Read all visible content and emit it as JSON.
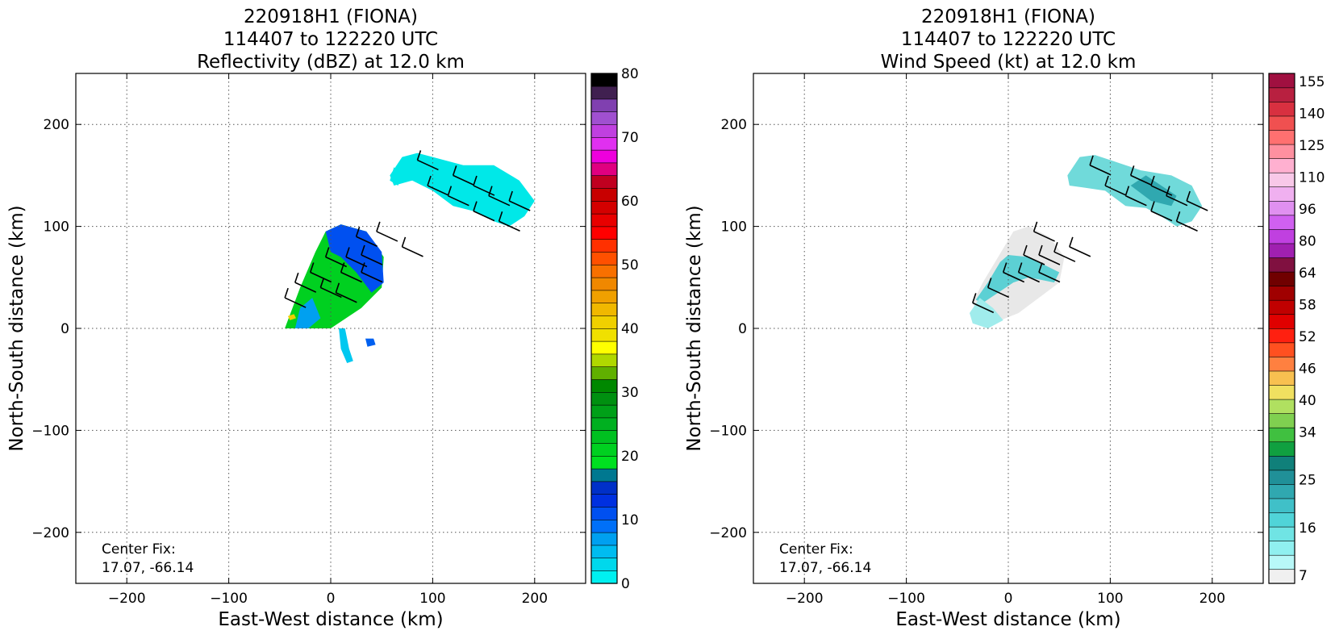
{
  "chart_data": [
    {
      "type": "heatmap",
      "title_lines": [
        "220918H1 (FIONA)",
        "114407 to 122220 UTC",
        "Reflectivity (dBZ) at 12.0 km"
      ],
      "xlabel": "East-West distance (km)",
      "ylabel": "North-South distance (km)",
      "xlim": [
        -250,
        250
      ],
      "ylim": [
        -250,
        250
      ],
      "xticks": [
        -200,
        -100,
        0,
        100,
        200
      ],
      "yticks": [
        -200,
        -100,
        0,
        100,
        200
      ],
      "tick_labels": {
        "-200": "−200",
        "-100": "−100",
        "0": "0",
        "100": "100",
        "200": "200"
      },
      "grid": true,
      "annotation": [
        "Center Fix:",
        "17.07, -66.14"
      ],
      "colorbar": {
        "min": 0,
        "max": 80,
        "step": 2.5,
        "ticks": [
          0,
          10,
          20,
          30,
          40,
          50,
          60,
          70,
          80
        ],
        "tick_labels": [
          "0",
          "10",
          "20",
          "30",
          "40",
          "50",
          "60",
          "70",
          "80"
        ],
        "colors": [
          "#00f0f0",
          "#00d8ec",
          "#00bcf0",
          "#00a0f0",
          "#0070f8",
          "#0050f0",
          "#0030e0",
          "#0030c8",
          "#007890",
          "#00e020",
          "#00d020",
          "#00c020",
          "#00b020",
          "#00a018",
          "#009010",
          "#008800",
          "#60b000",
          "#b0d800",
          "#ffff00",
          "#f0e000",
          "#f0d000",
          "#f0b800",
          "#f0a000",
          "#f08800",
          "#f87000",
          "#ff5000",
          "#ff3000",
          "#ff0000",
          "#e80000",
          "#d40000",
          "#c80000",
          "#c00020",
          "#e00080",
          "#ee00dd",
          "#e030f0",
          "#c040e0",
          "#a050d0",
          "#8040b0",
          "#402050",
          "#000000"
        ]
      },
      "regions": [
        {
          "name": "core",
          "color": "#00d020",
          "points": [
            [
              -45,
              0
            ],
            [
              -30,
              40
            ],
            [
              -15,
              75
            ],
            [
              -5,
              95
            ],
            [
              10,
              102
            ],
            [
              35,
              95
            ],
            [
              52,
              70
            ],
            [
              50,
              40
            ],
            [
              30,
              20
            ],
            [
              0,
              0
            ]
          ]
        },
        {
          "name": "core-blue",
          "color": "#0050f0",
          "points": [
            [
              -5,
              95
            ],
            [
              10,
              102
            ],
            [
              35,
              95
            ],
            [
              50,
              75
            ],
            [
              52,
              45
            ],
            [
              40,
              35
            ],
            [
              25,
              55
            ],
            [
              10,
              70
            ],
            [
              0,
              75
            ]
          ]
        },
        {
          "name": "core-lightblue",
          "color": "#00a0f0",
          "points": [
            [
              -30,
              20
            ],
            [
              -18,
              30
            ],
            [
              -10,
              10
            ],
            [
              -22,
              0
            ],
            [
              -35,
              0
            ]
          ]
        },
        {
          "name": "band-cyan",
          "color": "#00e8e8",
          "points": [
            [
              58,
              150
            ],
            [
              70,
              168
            ],
            [
              85,
              172
            ],
            [
              100,
              168
            ],
            [
              130,
              160
            ],
            [
              160,
              160
            ],
            [
              185,
              145
            ],
            [
              200,
              125
            ],
            [
              190,
              110
            ],
            [
              175,
              100
            ],
            [
              160,
              105
            ],
            [
              140,
              115
            ],
            [
              120,
              120
            ],
            [
              100,
              135
            ],
            [
              80,
              145
            ],
            [
              62,
              140
            ]
          ]
        },
        {
          "name": "band-spot",
          "color": "#00e8e8",
          "points": [
            [
              62,
              158
            ],
            [
              70,
              150
            ],
            [
              66,
              140
            ],
            [
              58,
              145
            ]
          ]
        },
        {
          "name": "stub",
          "color": "#00c8f0",
          "points": [
            [
              8,
              0
            ],
            [
              14,
              0
            ],
            [
              18,
              -20
            ],
            [
              22,
              -32
            ],
            [
              16,
              -34
            ],
            [
              10,
              -20
            ]
          ]
        },
        {
          "name": "stub2",
          "color": "#0060f0",
          "points": [
            [
              34,
              -10
            ],
            [
              42,
              -10
            ],
            [
              44,
              -16
            ],
            [
              36,
              -18
            ]
          ]
        },
        {
          "name": "yellow-dot",
          "color": "#f0d000",
          "points": [
            [
              -42,
              12
            ],
            [
              -36,
              14
            ],
            [
              -34,
              10
            ],
            [
              -40,
              8
            ]
          ]
        }
      ],
      "barbs": [
        [
          -45,
          30
        ],
        [
          -35,
          45
        ],
        [
          -20,
          55
        ],
        [
          -5,
          70
        ],
        [
          15,
          70
        ],
        [
          30,
          72
        ],
        [
          10,
          55
        ],
        [
          30,
          55
        ],
        [
          5,
          35
        ],
        [
          -10,
          40
        ],
        [
          25,
          90
        ],
        [
          45,
          95
        ],
        [
          70,
          80
        ],
        [
          85,
          165
        ],
        [
          120,
          150
        ],
        [
          140,
          140
        ],
        [
          155,
          130
        ],
        [
          175,
          125
        ],
        [
          165,
          105
        ],
        [
          140,
          115
        ],
        [
          115,
          130
        ],
        [
          95,
          140
        ]
      ]
    },
    {
      "type": "heatmap",
      "title_lines": [
        "220918H1 (FIONA)",
        "114407 to 122220 UTC",
        "Wind Speed (kt) at 12.0 km"
      ],
      "xlabel": "East-West distance (km)",
      "ylabel": "North-South distance (km)",
      "xlim": [
        -250,
        250
      ],
      "ylim": [
        -250,
        250
      ],
      "xticks": [
        -200,
        -100,
        0,
        100,
        200
      ],
      "yticks": [
        -200,
        -100,
        0,
        100,
        200
      ],
      "tick_labels": {
        "-200": "−200",
        "-100": "−100",
        "0": "0",
        "100": "100",
        "200": "200"
      },
      "grid": true,
      "annotation": [
        "Center Fix:",
        "17.07, -66.14"
      ],
      "colorbar": {
        "levels": 30,
        "ticks": [
          7,
          16,
          25,
          34,
          40,
          46,
          52,
          58,
          64,
          80,
          96,
          110,
          125,
          140,
          155
        ],
        "tick_positions": [
          0.5,
          3.5,
          6.5,
          9.5,
          11.5,
          13.5,
          15.5,
          17.5,
          19.5,
          21.5,
          23.5,
          25.5,
          27.5,
          29.5,
          31.5
        ],
        "max_level": 32,
        "colors": [
          "#f0f0f0",
          "#b8f8f8",
          "#90f0f0",
          "#70e4e4",
          "#50d4d8",
          "#40c0c8",
          "#30a8b0",
          "#209098",
          "#10807a",
          "#10a040",
          "#40c040",
          "#80d050",
          "#b0e060",
          "#f0e060",
          "#f8c050",
          "#ff8040",
          "#ff5020",
          "#ff2010",
          "#e00000",
          "#c00000",
          "#a00000",
          "#700000",
          "#801040",
          "#a020b0",
          "#c040e0",
          "#d060f0",
          "#e090f0",
          "#f0b0f0",
          "#f8c8e8",
          "#ffb0d0",
          "#ff90a0",
          "#ff7070",
          "#f05050",
          "#d83040",
          "#b82040",
          "#a01040"
        ]
      },
      "regions": [
        {
          "name": "core",
          "color": "#e8e8e8",
          "points": [
            [
              -35,
              25
            ],
            [
              -25,
              45
            ],
            [
              -10,
              70
            ],
            [
              5,
              95
            ],
            [
              20,
              100
            ],
            [
              40,
              90
            ],
            [
              55,
              70
            ],
            [
              50,
              45
            ],
            [
              30,
              30
            ],
            [
              10,
              15
            ],
            [
              -15,
              5
            ],
            [
              -30,
              15
            ]
          ]
        },
        {
          "name": "core-teal",
          "color": "#5cd0d4",
          "points": [
            [
              -32,
              28
            ],
            [
              -20,
              45
            ],
            [
              -8,
              65
            ],
            [
              0,
              72
            ],
            [
              20,
              70
            ],
            [
              40,
              60
            ],
            [
              50,
              55
            ],
            [
              45,
              45
            ],
            [
              20,
              50
            ],
            [
              5,
              45
            ],
            [
              -10,
              35
            ],
            [
              -25,
              25
            ]
          ]
        },
        {
          "name": "core-light",
          "color": "#a0ecec",
          "points": [
            [
              -38,
              15
            ],
            [
              -28,
              30
            ],
            [
              -15,
              20
            ],
            [
              -5,
              8
            ],
            [
              -20,
              0
            ],
            [
              -35,
              5
            ]
          ]
        },
        {
          "name": "band",
          "color": "#70dada",
          "points": [
            [
              58,
              150
            ],
            [
              70,
              168
            ],
            [
              85,
              170
            ],
            [
              100,
              165
            ],
            [
              130,
              155
            ],
            [
              160,
              150
            ],
            [
              180,
              140
            ],
            [
              190,
              120
            ],
            [
              180,
              105
            ],
            [
              165,
              100
            ],
            [
              150,
              110
            ],
            [
              135,
              118
            ],
            [
              115,
              120
            ],
            [
              95,
              135
            ],
            [
              75,
              138
            ],
            [
              60,
              140
            ]
          ]
        },
        {
          "name": "band-dark",
          "color": "#30a8b0",
          "points": [
            [
              120,
              140
            ],
            [
              135,
              150
            ],
            [
              150,
              140
            ],
            [
              165,
              130
            ],
            [
              160,
              120
            ],
            [
              140,
              125
            ]
          ]
        }
      ],
      "barbs": [
        [
          -35,
          25
        ],
        [
          -20,
          40
        ],
        [
          -5,
          55
        ],
        [
          15,
          72
        ],
        [
          30,
          72
        ],
        [
          10,
          55
        ],
        [
          30,
          55
        ],
        [
          45,
          75
        ],
        [
          60,
          80
        ],
        [
          25,
          95
        ],
        [
          80,
          160
        ],
        [
          120,
          150
        ],
        [
          140,
          140
        ],
        [
          155,
          130
        ],
        [
          175,
          125
        ],
        [
          165,
          105
        ],
        [
          140,
          115
        ],
        [
          115,
          130
        ],
        [
          95,
          140
        ]
      ]
    }
  ]
}
